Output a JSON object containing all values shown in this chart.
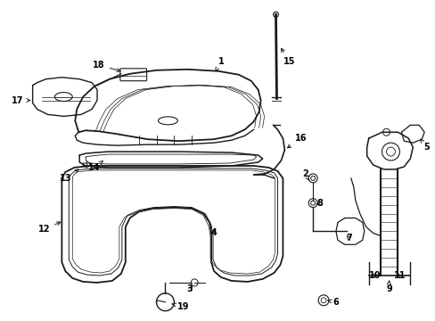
{
  "bg_color": "#ffffff",
  "fig_width": 4.89,
  "fig_height": 3.6,
  "dpi": 100,
  "line_color": "#1a1a1a",
  "label_color": "#000000",
  "label_fontsize": 7.0
}
